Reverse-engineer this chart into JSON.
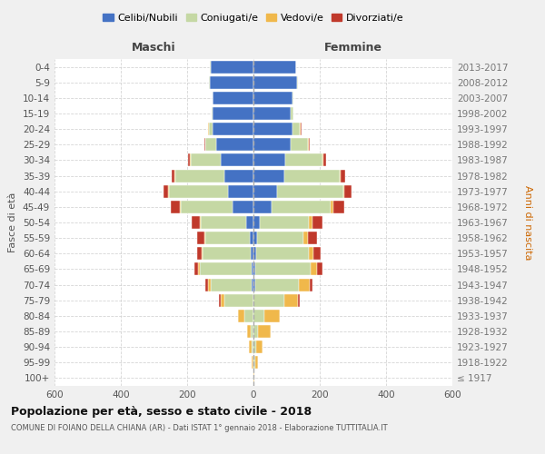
{
  "age_groups": [
    "100+",
    "95-99",
    "90-94",
    "85-89",
    "80-84",
    "75-79",
    "70-74",
    "65-69",
    "60-64",
    "55-59",
    "50-54",
    "45-49",
    "40-44",
    "35-39",
    "30-34",
    "25-29",
    "20-24",
    "15-19",
    "10-14",
    "5-9",
    "0-4"
  ],
  "birth_years": [
    "≤ 1917",
    "1918-1922",
    "1923-1927",
    "1928-1932",
    "1933-1937",
    "1938-1942",
    "1943-1947",
    "1948-1952",
    "1953-1957",
    "1958-1962",
    "1963-1967",
    "1968-1972",
    "1973-1977",
    "1978-1982",
    "1983-1987",
    "1988-1992",
    "1993-1997",
    "1998-2002",
    "2003-2007",
    "2008-2012",
    "2013-2017"
  ],
  "colors": {
    "celibi": "#4472c4",
    "coniugati": "#c5d8a4",
    "vedovi": "#f0b84b",
    "divorziati": "#c0392b"
  },
  "males": {
    "celibi": [
      0,
      0,
      0,
      0,
      0,
      0,
      5,
      5,
      8,
      12,
      22,
      62,
      78,
      88,
      98,
      112,
      122,
      122,
      122,
      132,
      130
    ],
    "coniugati": [
      0,
      0,
      5,
      8,
      28,
      88,
      125,
      158,
      145,
      132,
      138,
      158,
      178,
      148,
      92,
      32,
      12,
      5,
      2,
      2,
      2
    ],
    "vedovi": [
      0,
      5,
      8,
      12,
      18,
      12,
      6,
      3,
      3,
      3,
      2,
      2,
      2,
      2,
      2,
      2,
      2,
      0,
      0,
      0,
      0
    ],
    "divorziati": [
      0,
      0,
      0,
      0,
      0,
      5,
      8,
      12,
      14,
      22,
      24,
      28,
      12,
      8,
      5,
      3,
      2,
      0,
      0,
      0,
      0
    ]
  },
  "females": {
    "celibi": [
      0,
      0,
      0,
      0,
      0,
      0,
      5,
      5,
      8,
      10,
      18,
      55,
      72,
      92,
      96,
      112,
      118,
      112,
      118,
      132,
      128
    ],
    "coniugati": [
      0,
      5,
      8,
      15,
      32,
      92,
      132,
      168,
      158,
      142,
      148,
      178,
      198,
      168,
      112,
      52,
      22,
      8,
      3,
      3,
      2
    ],
    "vedovi": [
      2,
      10,
      20,
      38,
      48,
      42,
      32,
      20,
      16,
      13,
      11,
      8,
      5,
      4,
      3,
      2,
      2,
      0,
      0,
      0,
      0
    ],
    "divorziati": [
      0,
      0,
      0,
      0,
      0,
      5,
      10,
      14,
      20,
      26,
      32,
      32,
      22,
      12,
      8,
      5,
      3,
      0,
      0,
      0,
      0
    ]
  },
  "xlim": 600,
  "xticks": [
    -600,
    -400,
    -200,
    0,
    200,
    400,
    600
  ],
  "xticklabels": [
    "600",
    "400",
    "200",
    "0",
    "200",
    "400",
    "600"
  ],
  "title": "Popolazione per età, sesso e stato civile - 2018",
  "subtitle": "COMUNE DI FOIANO DELLA CHIANA (AR) - Dati ISTAT 1° gennaio 2018 - Elaborazione TUTTITALIA.IT",
  "ylabel_left": "Fasce di età",
  "ylabel_right": "Anni di nascita",
  "label_maschi": "Maschi",
  "label_femmine": "Femmine",
  "legend_labels": [
    "Celibi/Nubili",
    "Coniugati/e",
    "Vedovi/e",
    "Divorziati/e"
  ],
  "background_color": "#f0f0f0",
  "plot_background": "#ffffff"
}
